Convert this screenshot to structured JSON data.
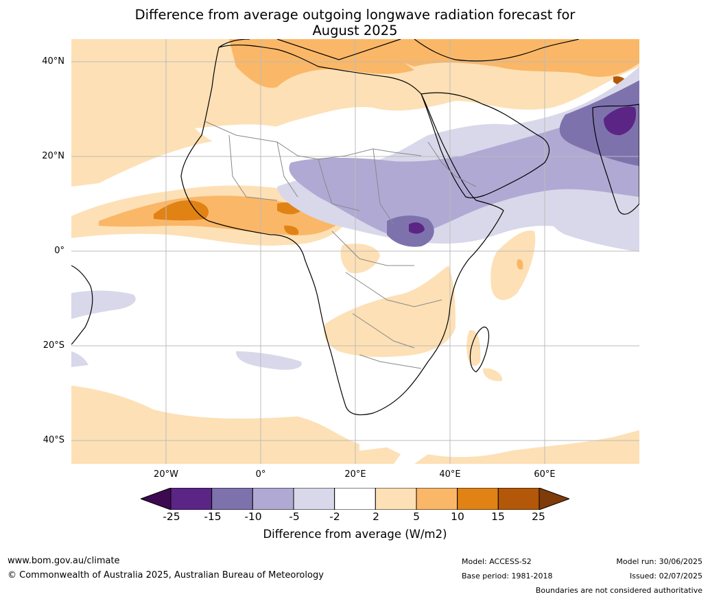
{
  "title_line1": "Difference from average outgoing longwave radiation forecast for",
  "title_line2": "August 2025",
  "lat_labels": [
    "40°N",
    "20°N",
    "0°",
    "20°S",
    "40°S"
  ],
  "lon_labels": [
    "20°W",
    "0°",
    "20°E",
    "40°E",
    "60°E"
  ],
  "colorbar": {
    "ticks": [
      "-25",
      "-15",
      "-10",
      "-5",
      "-2",
      "2",
      "5",
      "10",
      "15",
      "25"
    ],
    "colors": [
      "#3d0a52",
      "#5a2585",
      "#7e72ad",
      "#b0a9d3",
      "#d8d8ea",
      "#ffffff",
      "#fde0b5",
      "#fab767",
      "#e18215",
      "#b35808",
      "#7f3b08"
    ],
    "label": "Difference from average (W/m2)"
  },
  "footer": {
    "url": "www.bom.gov.au/climate",
    "copyright": "© Commonwealth of Australia 2025, Australian Bureau of Meteorology",
    "model": "Model: ACCESS-S2",
    "base_period": "Base period: 1981-2018",
    "model_run": "Model run: 30/06/2025",
    "issued": "Issued: 02/07/2025",
    "disclaimer": "Boundaries are not considered authoritative"
  }
}
